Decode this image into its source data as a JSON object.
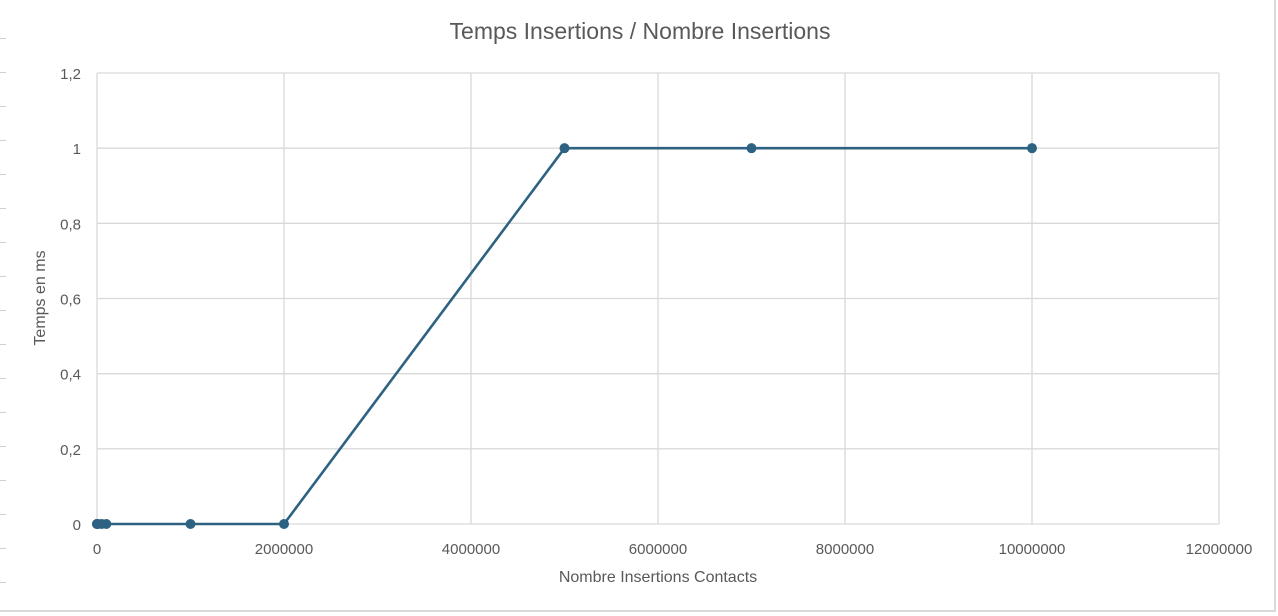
{
  "chart_data": {
    "type": "scatter",
    "mode": "lines+markers",
    "title": "Temps Insertions / Nombre Insertions",
    "xlabel": "Nombre Insertions Contacts",
    "ylabel": "Temps en ms",
    "xlim": [
      0,
      12000000
    ],
    "ylim": [
      0,
      1.2
    ],
    "x_ticks": [
      0,
      2000000,
      4000000,
      6000000,
      8000000,
      10000000,
      12000000
    ],
    "x_tick_labels": [
      "0",
      "2000000",
      "4000000",
      "6000000",
      "8000000",
      "10000000",
      "12000000"
    ],
    "y_ticks": [
      0,
      0.2,
      0.4,
      0.6,
      0.8,
      1,
      1.2
    ],
    "y_tick_labels": [
      "0",
      "0,2",
      "0,4",
      "0,6",
      "0,8",
      "1",
      "1,2"
    ],
    "grid": true,
    "series": [
      {
        "color": "#2e6282",
        "points": [
          {
            "x": 10,
            "y": 0
          },
          {
            "x": 100,
            "y": 0
          },
          {
            "x": 1000,
            "y": 0
          },
          {
            "x": 10000,
            "y": 0
          },
          {
            "x": 50000,
            "y": 0
          },
          {
            "x": 100000,
            "y": 0
          },
          {
            "x": 1000000,
            "y": 0
          },
          {
            "x": 2000000,
            "y": 0
          },
          {
            "x": 5000000,
            "y": 1
          },
          {
            "x": 7000000,
            "y": 1
          },
          {
            "x": 10000000,
            "y": 1
          }
        ]
      }
    ]
  }
}
